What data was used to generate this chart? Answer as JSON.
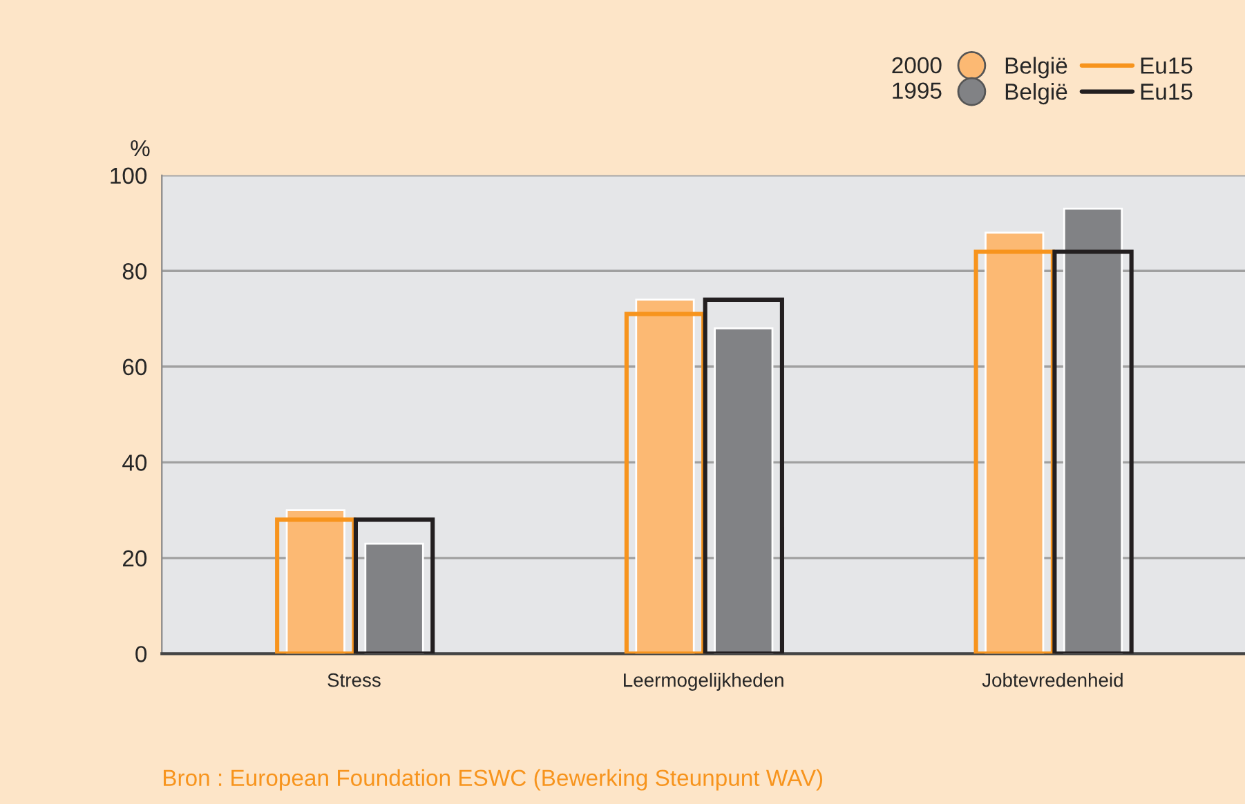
{
  "chart_data": {
    "type": "bar",
    "ylabel": "%",
    "categories": [
      "Stress",
      "Leermogelijkheden",
      "Jobtevredenheid"
    ],
    "series": [
      {
        "name": "België",
        "color": "#fcb973",
        "values": [
          30,
          74,
          88
        ]
      },
      {
        "name": "Eu15",
        "color": "#f7941d",
        "values": [
          28,
          71,
          84
        ]
      },
      {
        "name": "België",
        "color": "#818285",
        "values": [
          23,
          68,
          93
        ]
      },
      {
        "name": "Eu15",
        "color": "#231f20",
        "values": [
          28,
          74,
          84
        ]
      }
    ],
    "ylim": [
      0,
      100
    ],
    "yticks": [
      0,
      20,
      40,
      60,
      80,
      100
    ],
    "grid": "y",
    "legend": "top right",
    "annotations": [
      "2000",
      "1995",
      "Bron : European Foundation ESWC (Bewerking Steunpunt WAV)"
    ]
  }
}
